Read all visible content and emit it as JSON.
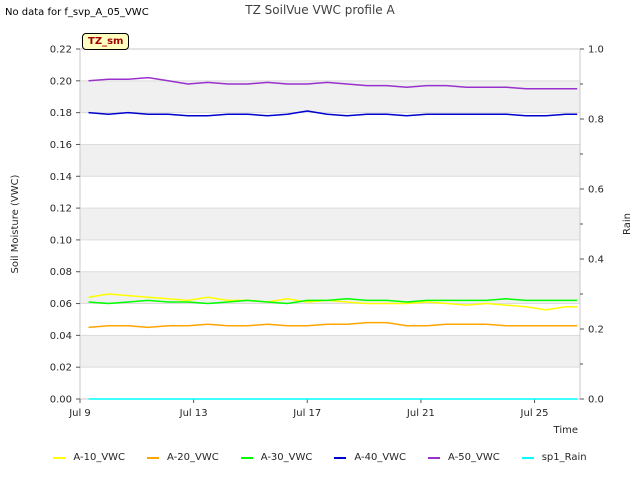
{
  "header": {
    "no_data": "No data for f_svp_A_05_VWC",
    "badge": "TZ_sm"
  },
  "chart_data": {
    "type": "line",
    "title": "TZ SoilVue VWC profile A",
    "xlabel": "Time",
    "ylabel": "Soil Moisture (VWC)",
    "y2label": "Rain",
    "ylim": [
      0,
      0.22
    ],
    "y2lim": [
      0,
      1.0
    ],
    "xlim_days": [
      9,
      26.6
    ],
    "x_ticks": [
      {
        "day": 9,
        "label": "Jul 9"
      },
      {
        "day": 13,
        "label": "Jul 13"
      },
      {
        "day": 17,
        "label": "Jul 17"
      },
      {
        "day": 21,
        "label": "Jul 21"
      },
      {
        "day": 25,
        "label": "Jul 25"
      }
    ],
    "y_ticks": [
      "0.00",
      "0.02",
      "0.04",
      "0.06",
      "0.08",
      "0.10",
      "0.12",
      "0.14",
      "0.16",
      "0.18",
      "0.20",
      "0.22"
    ],
    "y2_ticks": [
      "0.0",
      "0.2",
      "0.4",
      "0.6",
      "0.8",
      "1.0"
    ],
    "x": [
      9.3,
      10.0,
      10.7,
      11.4,
      12.1,
      12.8,
      13.5,
      14.2,
      14.9,
      15.6,
      16.3,
      17.0,
      17.7,
      18.4,
      19.1,
      19.8,
      20.5,
      21.2,
      21.9,
      22.6,
      23.3,
      24.0,
      24.7,
      25.4,
      26.1,
      26.5
    ],
    "series": [
      {
        "name": "A-10_VWC",
        "color": "#ffff00",
        "axis": "left",
        "values": [
          0.064,
          0.066,
          0.065,
          0.064,
          0.063,
          0.062,
          0.064,
          0.062,
          0.062,
          0.061,
          0.063,
          0.061,
          0.062,
          0.061,
          0.06,
          0.06,
          0.06,
          0.061,
          0.06,
          0.059,
          0.06,
          0.059,
          0.058,
          0.056,
          0.058,
          0.058
        ]
      },
      {
        "name": "A-20_VWC",
        "color": "#ffa500",
        "axis": "left",
        "values": [
          0.045,
          0.046,
          0.046,
          0.045,
          0.046,
          0.046,
          0.047,
          0.046,
          0.046,
          0.047,
          0.046,
          0.046,
          0.047,
          0.047,
          0.048,
          0.048,
          0.046,
          0.046,
          0.047,
          0.047,
          0.047,
          0.046,
          0.046,
          0.046,
          0.046,
          0.046
        ]
      },
      {
        "name": "A-30_VWC",
        "color": "#00ff00",
        "axis": "left",
        "values": [
          0.061,
          0.06,
          0.061,
          0.062,
          0.061,
          0.061,
          0.06,
          0.061,
          0.062,
          0.061,
          0.06,
          0.062,
          0.062,
          0.063,
          0.062,
          0.062,
          0.061,
          0.062,
          0.062,
          0.062,
          0.062,
          0.063,
          0.062,
          0.062,
          0.062,
          0.062
        ]
      },
      {
        "name": "A-40_VWC",
        "color": "#0000cd",
        "axis": "left",
        "values": [
          0.18,
          0.179,
          0.18,
          0.179,
          0.179,
          0.178,
          0.178,
          0.179,
          0.179,
          0.178,
          0.179,
          0.181,
          0.179,
          0.178,
          0.179,
          0.179,
          0.178,
          0.179,
          0.179,
          0.179,
          0.179,
          0.179,
          0.178,
          0.178,
          0.179,
          0.179
        ]
      },
      {
        "name": "A-50_VWC",
        "color": "#9932cc",
        "axis": "left",
        "values": [
          0.2,
          0.201,
          0.201,
          0.202,
          0.2,
          0.198,
          0.199,
          0.198,
          0.198,
          0.199,
          0.198,
          0.198,
          0.199,
          0.198,
          0.197,
          0.197,
          0.196,
          0.197,
          0.197,
          0.196,
          0.196,
          0.196,
          0.195,
          0.195,
          0.195,
          0.195
        ]
      },
      {
        "name": "sp1_Rain",
        "color": "#00ffff",
        "axis": "right",
        "values": [
          0,
          0,
          0,
          0,
          0,
          0,
          0,
          0,
          0,
          0,
          0,
          0,
          0,
          0,
          0,
          0,
          0,
          0,
          0,
          0,
          0,
          0,
          0,
          0,
          0,
          0
        ]
      }
    ],
    "legend_position": "bottom"
  }
}
